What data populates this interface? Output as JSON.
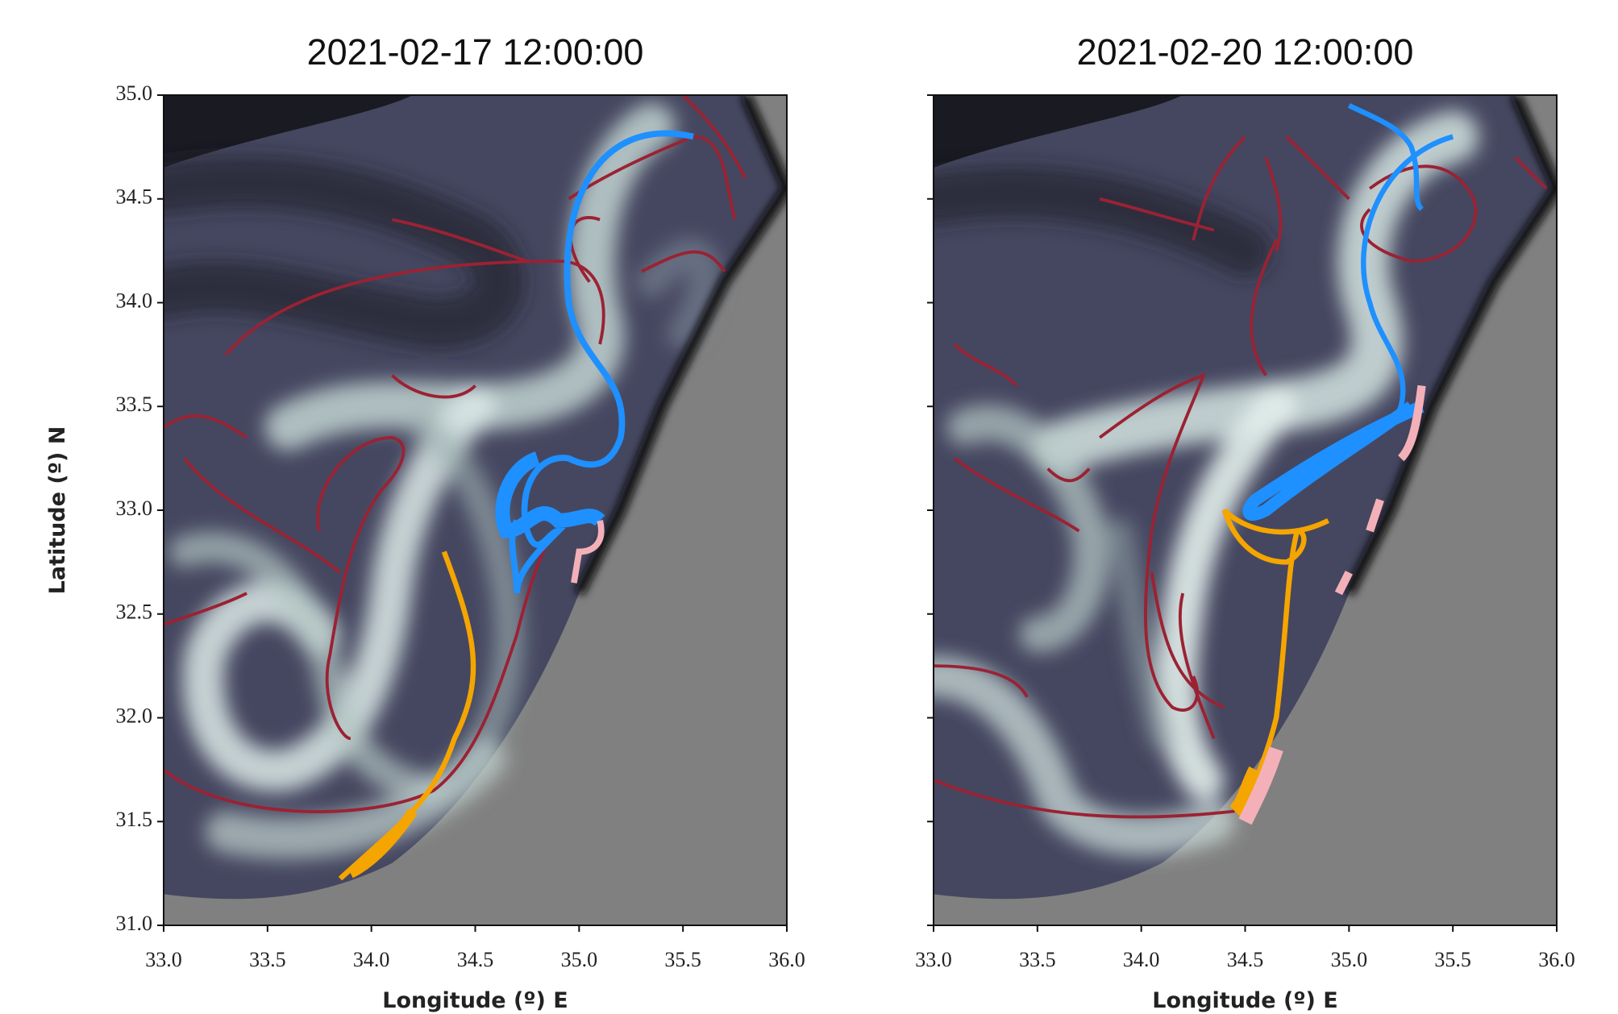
{
  "chart_data": [
    {
      "type": "map",
      "title": "2021-02-17 12:00:00",
      "xlabel": "Longitude (º) E",
      "ylabel": "Latitude (º) N",
      "xlim": [
        33,
        36
      ],
      "ylim": [
        31,
        35
      ],
      "xticks": [
        {
          "value": 33,
          "label": "33.0"
        },
        {
          "value": 33.5,
          "label": "33.5"
        },
        {
          "value": 34,
          "label": "34.0"
        },
        {
          "value": 34.5,
          "label": "34.5"
        },
        {
          "value": 35,
          "label": "35.0"
        },
        {
          "value": 35.5,
          "label": "35.5"
        },
        {
          "value": 36,
          "label": "36.0"
        }
      ],
      "yticks": [
        {
          "value": 31,
          "label": "31.0"
        },
        {
          "value": 31.5,
          "label": "31.5"
        },
        {
          "value": 32,
          "label": "32.0"
        },
        {
          "value": 32.5,
          "label": "32.5"
        },
        {
          "value": 33,
          "label": "33.0"
        },
        {
          "value": 33.5,
          "label": "33.5"
        },
        {
          "value": 34,
          "label": "34.0"
        },
        {
          "value": 34.5,
          "label": "34.5"
        },
        {
          "value": 35,
          "label": "35.0"
        }
      ]
    },
    {
      "type": "map",
      "title": "2021-02-20 12:00:00",
      "xlabel": "Longitude (º) E",
      "xlim": [
        33,
        36
      ],
      "ylim": [
        31,
        35
      ],
      "xticks": [
        {
          "value": 33,
          "label": "33.0"
        },
        {
          "value": 33.5,
          "label": "33.5"
        },
        {
          "value": 34,
          "label": "34.0"
        },
        {
          "value": 34.5,
          "label": "34.5"
        },
        {
          "value": 35,
          "label": "35.0"
        },
        {
          "value": 35.5,
          "label": "35.5"
        },
        {
          "value": 36,
          "label": "36.0"
        }
      ],
      "yticks": [
        31,
        31.5,
        32,
        32.5,
        33,
        33.5,
        34,
        34.5,
        35
      ],
      "show_ytick_labels": false
    }
  ]
}
